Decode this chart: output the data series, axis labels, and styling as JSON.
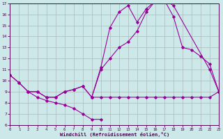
{
  "xlabel": "Windchill (Refroidissement éolien,°C)",
  "xlim": [
    0,
    23
  ],
  "ylim": [
    6,
    17
  ],
  "xticks": [
    0,
    1,
    2,
    3,
    4,
    5,
    6,
    7,
    8,
    9,
    10,
    11,
    12,
    13,
    14,
    15,
    16,
    17,
    18,
    19,
    20,
    21,
    22,
    23
  ],
  "yticks": [
    6,
    7,
    8,
    9,
    10,
    11,
    12,
    13,
    14,
    15,
    16,
    17
  ],
  "bg_color": "#cce8e8",
  "line_color": "#990099",
  "grid_color": "#aabbbb",
  "line1_x": [
    0,
    1,
    2,
    3,
    4,
    5,
    6,
    7,
    8,
    9,
    10,
    11,
    12,
    13,
    14,
    15,
    16,
    17,
    18,
    19,
    20,
    21,
    22,
    23
  ],
  "line1_y": [
    10.5,
    9.8,
    9.0,
    9.0,
    8.5,
    8.5,
    9.0,
    9.2,
    9.5,
    8.5,
    11.0,
    12.0,
    13.0,
    13.5,
    14.5,
    16.2,
    17.2,
    17.3,
    15.8,
    13.0,
    12.8,
    12.2,
    11.5,
    9.0
  ],
  "line2_x": [
    2,
    3,
    4,
    5,
    6,
    7,
    8,
    9,
    10,
    11,
    12,
    13,
    14,
    15,
    16,
    17,
    18,
    22,
    23
  ],
  "line2_y": [
    9.0,
    9.0,
    8.5,
    8.5,
    9.0,
    9.2,
    9.5,
    8.5,
    11.2,
    14.8,
    16.2,
    16.8,
    15.3,
    16.5,
    17.2,
    17.3,
    16.8,
    11.0,
    9.0
  ],
  "line3_x": [
    0,
    1,
    2,
    3,
    4,
    5,
    6,
    7,
    8,
    9,
    10,
    11,
    12,
    13,
    14,
    15,
    16,
    17,
    18,
    19,
    20,
    21,
    22,
    23
  ],
  "line3_y": [
    10.5,
    9.8,
    9.0,
    8.5,
    8.2,
    8.0,
    7.8,
    7.5,
    7.0,
    6.5,
    6.5,
    null,
    null,
    null,
    null,
    null,
    null,
    null,
    null,
    null,
    null,
    null,
    null,
    null
  ],
  "line4_x": [
    9,
    10,
    11,
    12,
    13,
    14,
    15,
    16,
    17,
    18,
    19,
    20,
    21,
    22,
    23
  ],
  "line4_y": [
    8.5,
    8.5,
    8.5,
    8.5,
    8.5,
    8.5,
    8.5,
    8.5,
    8.5,
    8.5,
    8.5,
    8.5,
    8.5,
    8.5,
    9.0
  ]
}
